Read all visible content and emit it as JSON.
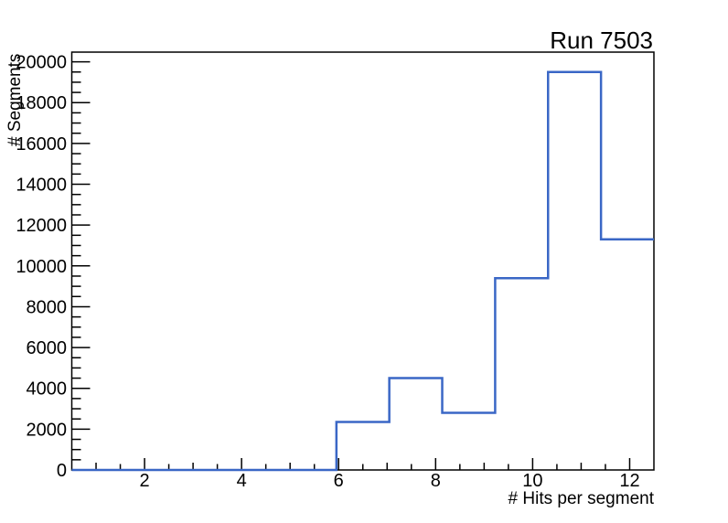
{
  "title": "Run 7503",
  "axes": {
    "x": {
      "label": "# Hits per segment",
      "min": 0.5,
      "max": 12.5,
      "major_ticks": [
        2,
        4,
        6,
        8,
        10,
        12
      ],
      "major_tick_labels": [
        "2",
        "4",
        "6",
        "8",
        "10",
        "12"
      ],
      "minor_tick_step": 0.5
    },
    "y": {
      "label": "# Segments",
      "min": 0,
      "max": 20475,
      "major_ticks": [
        0,
        2000,
        4000,
        6000,
        8000,
        10000,
        12000,
        14000,
        16000,
        18000,
        20000
      ],
      "major_tick_labels": [
        "0",
        "2000",
        "4000",
        "6000",
        "8000",
        "10000",
        "12000",
        "14000",
        "16000",
        "18000",
        "20000"
      ],
      "minor_tick_step": 500
    }
  },
  "chart_data": {
    "type": "bar",
    "style": "step-histogram",
    "title": "Run 7503",
    "xlabel": "# Hits per segment",
    "ylabel": "# Segments",
    "xlim": [
      0.5,
      12.5
    ],
    "ylim": [
      0,
      20475
    ],
    "n_bins": 11,
    "bin_width": 1.0909,
    "bin_edges": [
      0.5,
      1.591,
      2.682,
      3.773,
      4.864,
      5.955,
      7.045,
      8.136,
      9.227,
      10.318,
      11.409,
      12.5
    ],
    "values": [
      0,
      0,
      0,
      0,
      0,
      2350,
      4500,
      2800,
      9400,
      19500,
      11300
    ],
    "grid": false,
    "legend": false,
    "line_color": "#3a67c6"
  },
  "colors": {
    "histogram_line": "#3a67c6",
    "axis": "#000000",
    "text": "#000000",
    "background": "#ffffff"
  }
}
